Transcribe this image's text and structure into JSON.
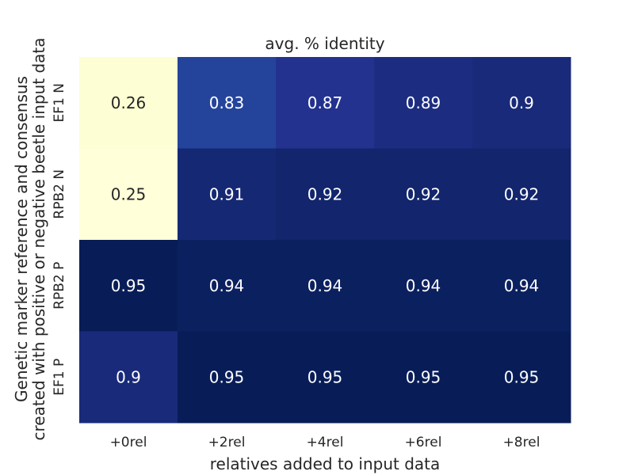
{
  "chart_data": {
    "type": "heatmap",
    "title": "avg. % identity",
    "xlabel": "relatives added to input data",
    "ylabel_lines": [
      "Genetic marker reference and consensus",
      "created with positive or negative beetle input data"
    ],
    "x_categories": [
      "+0rel",
      "+2rel",
      "+4rel",
      "+6rel",
      "+8rel"
    ],
    "y_categories": [
      "EF1 N",
      "RPB2 N",
      "RPB2 P",
      "EF1 P"
    ],
    "values": [
      [
        0.26,
        0.83,
        0.87,
        0.89,
        0.9
      ],
      [
        0.25,
        0.91,
        0.92,
        0.92,
        0.92
      ],
      [
        0.95,
        0.94,
        0.94,
        0.94,
        0.94
      ],
      [
        0.9,
        0.95,
        0.95,
        0.95,
        0.95
      ]
    ],
    "value_labels": [
      [
        "0.26",
        "0.83",
        "0.87",
        "0.89",
        "0.9"
      ],
      [
        "0.25",
        "0.91",
        "0.92",
        "0.92",
        "0.92"
      ],
      [
        "0.95",
        "0.94",
        "0.94",
        "0.94",
        "0.94"
      ],
      [
        "0.9",
        "0.95",
        "0.95",
        "0.95",
        "0.95"
      ]
    ],
    "colormap": "YlGnBu",
    "colorbar": false,
    "grid": false
  }
}
